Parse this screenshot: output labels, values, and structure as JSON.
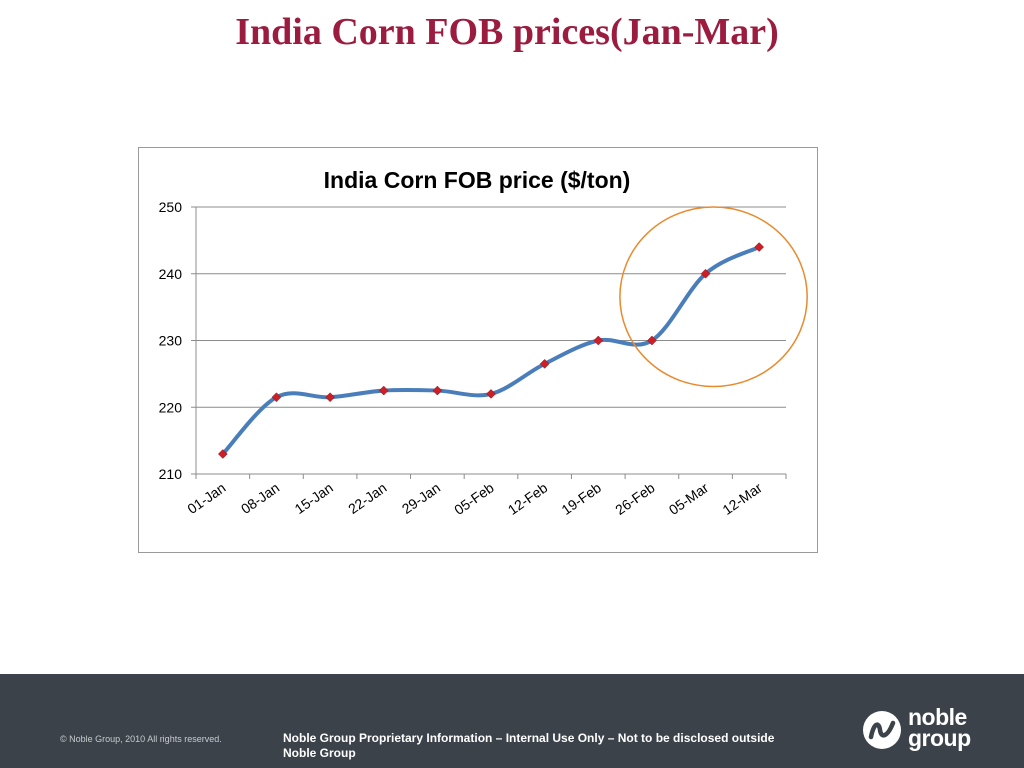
{
  "slide": {
    "title": "India Corn FOB prices(Jan-Mar)"
  },
  "chart_data": {
    "type": "line",
    "title": "India Corn FOB price ($/ton)",
    "xlabel": "",
    "ylabel": "",
    "categories": [
      "01-Jan",
      "08-Jan",
      "15-Jan",
      "22-Jan",
      "29-Jan",
      "05-Feb",
      "12-Feb",
      "19-Feb",
      "26-Feb",
      "05-Mar",
      "12-Mar"
    ],
    "series": [
      {
        "values": [
          213,
          221.5,
          221.5,
          222.5,
          222.5,
          222,
          226.5,
          230,
          230,
          240,
          244
        ],
        "color": "#4a7ebb",
        "marker_color": "#cc1f26"
      }
    ],
    "ylim": [
      210,
      250
    ],
    "yticks": [
      210,
      220,
      230,
      240,
      250
    ],
    "grid": true,
    "legend": "none",
    "smooth": true,
    "annotation": {
      "shape": "ellipse",
      "color": "#e88a2e",
      "covers": [
        "26-Feb",
        "05-Mar",
        "12-Mar"
      ]
    }
  },
  "footer": {
    "copyright": "© Noble Group, 2010 All rights reserved.",
    "proprietary_line1": "Noble Group Proprietary Information – Internal Use Only – Not to be disclosed outside",
    "proprietary_line2": "Noble Group",
    "logo_line1": "noble",
    "logo_line2": "group",
    "logo_icon": "noble-wave-icon",
    "background": "#3b4249"
  },
  "colors": {
    "title": "#9b1c3f"
  }
}
